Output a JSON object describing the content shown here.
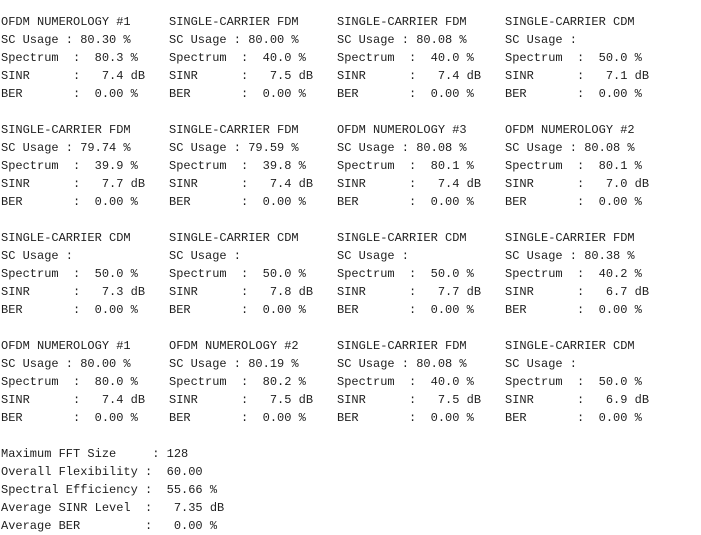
{
  "groups": [
    {
      "panels": [
        {
          "title": "OFDM NUMEROLOGY #1",
          "sc_usage": "SC Usage : 80.30 %",
          "spectrum": "Spectrum  :  80.3 %",
          "sinr": "SINR      :   7.4 dB",
          "ber": "BER       :  0.00 %"
        },
        {
          "title": "SINGLE-CARRIER FDM",
          "sc_usage": "SC Usage : 80.00 %",
          "spectrum": "Spectrum  :  40.0 %",
          "sinr": "SINR      :   7.5 dB",
          "ber": "BER       :  0.00 %"
        },
        {
          "title": "SINGLE-CARRIER FDM",
          "sc_usage": "SC Usage : 80.08 %",
          "spectrum": "Spectrum  :  40.0 %",
          "sinr": "SINR      :   7.4 dB",
          "ber": "BER       :  0.00 %"
        },
        {
          "title": "SINGLE-CARRIER CDM",
          "sc_usage": "SC Usage :",
          "spectrum": "Spectrum  :  50.0 %",
          "sinr": "SINR      :   7.1 dB",
          "ber": "BER       :  0.00 %"
        }
      ]
    },
    {
      "panels": [
        {
          "title": "SINGLE-CARRIER FDM",
          "sc_usage": "SC Usage : 79.74 %",
          "spectrum": "Spectrum  :  39.9 %",
          "sinr": "SINR      :   7.7 dB",
          "ber": "BER       :  0.00 %"
        },
        {
          "title": "SINGLE-CARRIER FDM",
          "sc_usage": "SC Usage : 79.59 %",
          "spectrum": "Spectrum  :  39.8 %",
          "sinr": "SINR      :   7.4 dB",
          "ber": "BER       :  0.00 %"
        },
        {
          "title": "OFDM NUMEROLOGY #3",
          "sc_usage": "SC Usage : 80.08 %",
          "spectrum": "Spectrum  :  80.1 %",
          "sinr": "SINR      :   7.4 dB",
          "ber": "BER       :  0.00 %"
        },
        {
          "title": "OFDM NUMEROLOGY #2",
          "sc_usage": "SC Usage : 80.08 %",
          "spectrum": "Spectrum  :  80.1 %",
          "sinr": "SINR      :   7.0 dB",
          "ber": "BER       :  0.00 %"
        }
      ]
    },
    {
      "panels": [
        {
          "title": "SINGLE-CARRIER CDM",
          "sc_usage": "SC Usage :",
          "spectrum": "Spectrum  :  50.0 %",
          "sinr": "SINR      :   7.3 dB",
          "ber": "BER       :  0.00 %"
        },
        {
          "title": "SINGLE-CARRIER CDM",
          "sc_usage": "SC Usage :",
          "spectrum": "Spectrum  :  50.0 %",
          "sinr": "SINR      :   7.8 dB",
          "ber": "BER       :  0.00 %"
        },
        {
          "title": "SINGLE-CARRIER CDM",
          "sc_usage": "SC Usage :",
          "spectrum": "Spectrum  :  50.0 %",
          "sinr": "SINR      :   7.7 dB",
          "ber": "BER       :  0.00 %"
        },
        {
          "title": "SINGLE-CARRIER FDM",
          "sc_usage": "SC Usage : 80.38 %",
          "spectrum": "Spectrum  :  40.2 %",
          "sinr": "SINR      :   6.7 dB",
          "ber": "BER       :  0.00 %"
        }
      ]
    },
    {
      "panels": [
        {
          "title": "OFDM NUMEROLOGY #1",
          "sc_usage": "SC Usage : 80.00 %",
          "spectrum": "Spectrum  :  80.0 %",
          "sinr": "SINR      :   7.4 dB",
          "ber": "BER       :  0.00 %"
        },
        {
          "title": "OFDM NUMEROLOGY #2",
          "sc_usage": "SC Usage : 80.19 %",
          "spectrum": "Spectrum  :  80.2 %",
          "sinr": "SINR      :   7.5 dB",
          "ber": "BER       :  0.00 %"
        },
        {
          "title": "SINGLE-CARRIER FDM",
          "sc_usage": "SC Usage : 80.08 %",
          "spectrum": "Spectrum  :  40.0 %",
          "sinr": "SINR      :   7.5 dB",
          "ber": "BER       :  0.00 %"
        },
        {
          "title": "SINGLE-CARRIER CDM",
          "sc_usage": "SC Usage :",
          "spectrum": "Spectrum  :  50.0 %",
          "sinr": "SINR      :   6.9 dB",
          "ber": "BER       :  0.00 %"
        }
      ]
    }
  ],
  "summary": {
    "max_fft": "Maximum FFT Size     : 128",
    "flexibility": "Overall Flexibility :  60.00",
    "spectral_efficiency": "Spectral Efficiency :  55.66 %",
    "avg_sinr": "Average SINR Level  :   7.35 dB",
    "avg_ber": "Average BER         :   0.00 %"
  }
}
